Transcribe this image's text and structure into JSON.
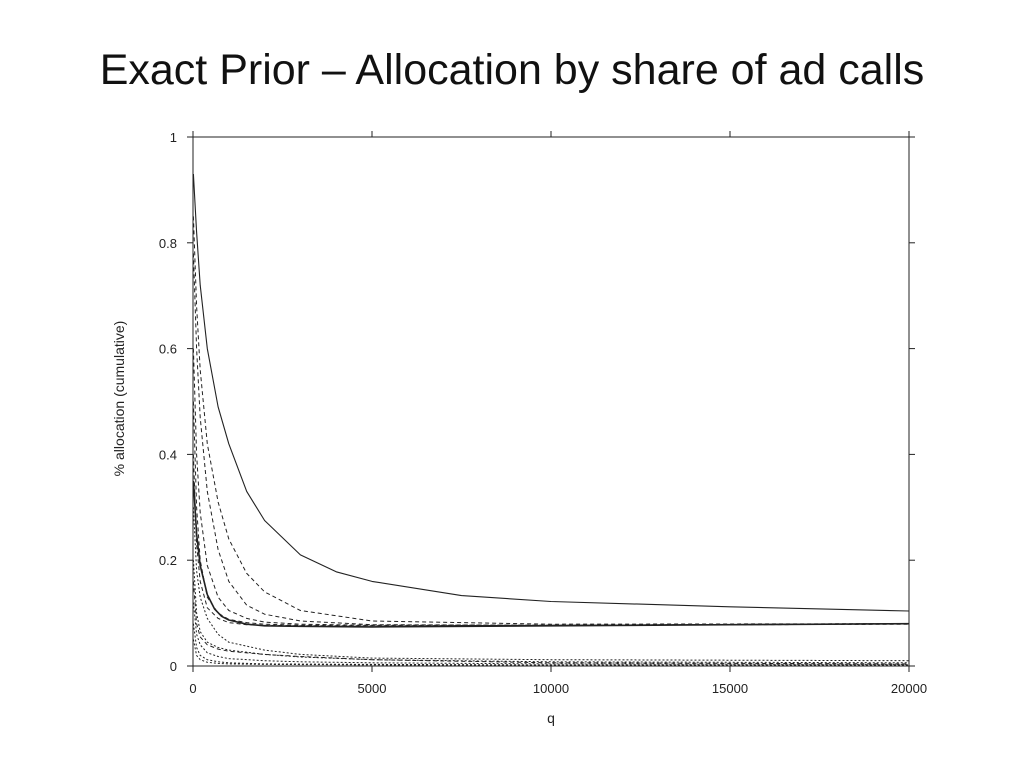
{
  "slide": {
    "title": "Exact Prior – Allocation by share of ad calls"
  },
  "chart_data": {
    "type": "line",
    "xlabel": "q",
    "ylabel": "% allocation (cumulative)",
    "xlim": [
      0,
      20000
    ],
    "ylim": [
      0,
      1
    ],
    "x_ticks": [
      0,
      5000,
      10000,
      15000,
      20000
    ],
    "y_ticks": [
      0,
      0.2,
      0.4,
      0.6,
      0.8,
      1
    ],
    "grid": false,
    "legend": "none",
    "series": [
      {
        "style": "solid",
        "width": 1.1,
        "x": [
          10,
          100,
          200,
          400,
          700,
          1000,
          1500,
          2000,
          3000,
          4000,
          5000,
          7500,
          10000,
          15000,
          20000
        ],
        "y": [
          0.93,
          0.82,
          0.72,
          0.6,
          0.49,
          0.42,
          0.33,
          0.275,
          0.21,
          0.178,
          0.16,
          0.133,
          0.122,
          0.112,
          0.104
        ]
      },
      {
        "style": "solid",
        "width": 1.6,
        "x": [
          10,
          100,
          200,
          400,
          600,
          800,
          1000,
          1500,
          2000,
          3000,
          5000,
          10000,
          15000,
          20000
        ],
        "y": [
          0.35,
          0.25,
          0.19,
          0.135,
          0.108,
          0.094,
          0.087,
          0.079,
          0.076,
          0.075,
          0.074,
          0.076,
          0.078,
          0.08
        ]
      },
      {
        "style": "dashed",
        "width": 1.0,
        "x": [
          10,
          100,
          200,
          400,
          700,
          1000,
          1500,
          2000,
          3000,
          5000,
          10000,
          20000
        ],
        "y": [
          0.78,
          0.6,
          0.47,
          0.33,
          0.22,
          0.16,
          0.115,
          0.098,
          0.085,
          0.078,
          0.077,
          0.08
        ]
      },
      {
        "style": "dashed",
        "width": 1.0,
        "x": [
          10,
          100,
          200,
          400,
          700,
          1000,
          1500,
          2000,
          3000,
          5000,
          10000,
          20000
        ],
        "y": [
          0.85,
          0.68,
          0.56,
          0.42,
          0.31,
          0.24,
          0.175,
          0.14,
          0.105,
          0.085,
          0.079,
          0.08
        ]
      },
      {
        "style": "dashed",
        "width": 1.0,
        "x": [
          10,
          100,
          200,
          400,
          700,
          1000,
          1500,
          2000,
          3000,
          5000,
          10000,
          20000
        ],
        "y": [
          0.6,
          0.4,
          0.29,
          0.19,
          0.13,
          0.105,
          0.09,
          0.083,
          0.079,
          0.077,
          0.077,
          0.079
        ]
      },
      {
        "style": "dashed",
        "width": 1.0,
        "x": [
          10,
          100,
          200,
          400,
          700,
          1000,
          1500,
          2000,
          3000,
          5000,
          10000,
          20000
        ],
        "y": [
          0.5,
          0.3,
          0.2,
          0.13,
          0.1,
          0.088,
          0.082,
          0.079,
          0.077,
          0.077,
          0.077,
          0.08
        ]
      },
      {
        "style": "dashed",
        "width": 1.0,
        "x": [
          10,
          100,
          200,
          400,
          700,
          1000,
          1500,
          2000,
          3000,
          5000,
          10000,
          20000
        ],
        "y": [
          0.4,
          0.23,
          0.16,
          0.11,
          0.09,
          0.082,
          0.078,
          0.077,
          0.076,
          0.076,
          0.077,
          0.08
        ]
      },
      {
        "style": "dotted",
        "width": 1.0,
        "x": [
          10,
          100,
          200,
          400,
          700,
          1000,
          2000,
          3000,
          5000,
          10000,
          20000
        ],
        "y": [
          0.3,
          0.18,
          0.13,
          0.09,
          0.06,
          0.045,
          0.03,
          0.022,
          0.015,
          0.012,
          0.01
        ]
      },
      {
        "style": "dotted",
        "width": 1.0,
        "x": [
          10,
          100,
          200,
          400,
          700,
          1000,
          2000,
          3000,
          5000,
          10000,
          20000
        ],
        "y": [
          0.2,
          0.1,
          0.065,
          0.045,
          0.035,
          0.03,
          0.022,
          0.017,
          0.012,
          0.008,
          0.006
        ]
      },
      {
        "style": "dotted",
        "width": 1.0,
        "x": [
          10,
          100,
          200,
          400,
          700,
          1000,
          2000,
          3000,
          5000,
          10000,
          20000
        ],
        "y": [
          0.12,
          0.06,
          0.04,
          0.025,
          0.018,
          0.014,
          0.01,
          0.008,
          0.006,
          0.004,
          0.003
        ]
      },
      {
        "style": "dotted",
        "width": 1.0,
        "x": [
          10,
          100,
          200,
          400,
          700,
          1000,
          2000,
          5000,
          10000,
          20000
        ],
        "y": [
          0.08,
          0.035,
          0.02,
          0.012,
          0.008,
          0.006,
          0.004,
          0.003,
          0.002,
          0.002
        ]
      },
      {
        "style": "dotted",
        "width": 1.0,
        "x": [
          10,
          100,
          200,
          400,
          700,
          1000,
          2000,
          5000,
          10000,
          20000
        ],
        "y": [
          0.05,
          0.02,
          0.012,
          0.007,
          0.005,
          0.004,
          0.003,
          0.002,
          0.001,
          0.001
        ]
      },
      {
        "style": "dashed",
        "width": 1.0,
        "x": [
          10,
          100,
          200,
          400,
          700,
          1000,
          2000,
          3000,
          5000,
          10000,
          20000
        ],
        "y": [
          0.16,
          0.08,
          0.055,
          0.04,
          0.032,
          0.028,
          0.022,
          0.018,
          0.012,
          0.006,
          0.004
        ]
      }
    ]
  }
}
